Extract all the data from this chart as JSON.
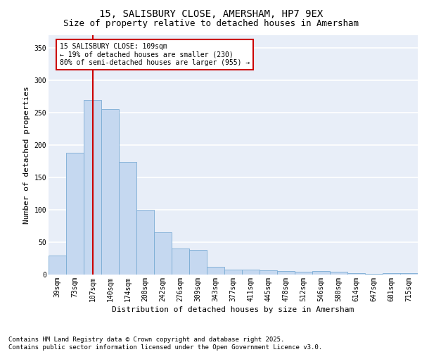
{
  "title_line1": "15, SALISBURY CLOSE, AMERSHAM, HP7 9EX",
  "title_line2": "Size of property relative to detached houses in Amersham",
  "xlabel": "Distribution of detached houses by size in Amersham",
  "ylabel": "Number of detached properties",
  "categories": [
    "39sqm",
    "73sqm",
    "107sqm",
    "140sqm",
    "174sqm",
    "208sqm",
    "242sqm",
    "276sqm",
    "309sqm",
    "343sqm",
    "377sqm",
    "411sqm",
    "445sqm",
    "478sqm",
    "512sqm",
    "546sqm",
    "580sqm",
    "614sqm",
    "647sqm",
    "681sqm",
    "715sqm"
  ],
  "values": [
    29,
    188,
    270,
    256,
    174,
    100,
    65,
    40,
    38,
    12,
    8,
    8,
    7,
    5,
    4,
    5,
    4,
    2,
    1,
    2,
    2
  ],
  "bar_color": "#c5d8f0",
  "bar_edge_color": "#7aacd4",
  "vline_x_index": 2,
  "vline_color": "#cc0000",
  "annotation_text": "15 SALISBURY CLOSE: 109sqm\n← 19% of detached houses are smaller (230)\n80% of semi-detached houses are larger (955) →",
  "annotation_box_color": "#ffffff",
  "annotation_box_edge": "#cc0000",
  "ylim": [
    0,
    370
  ],
  "yticks": [
    0,
    50,
    100,
    150,
    200,
    250,
    300,
    350
  ],
  "background_color": "#e8eef8",
  "grid_color": "#ffffff",
  "footnote": "Contains HM Land Registry data © Crown copyright and database right 2025.\nContains public sector information licensed under the Open Government Licence v3.0.",
  "title_fontsize": 10,
  "subtitle_fontsize": 9,
  "footnote_fontsize": 6.5,
  "tick_fontsize": 7,
  "ylabel_fontsize": 8,
  "xlabel_fontsize": 8,
  "ann_fontsize": 7
}
